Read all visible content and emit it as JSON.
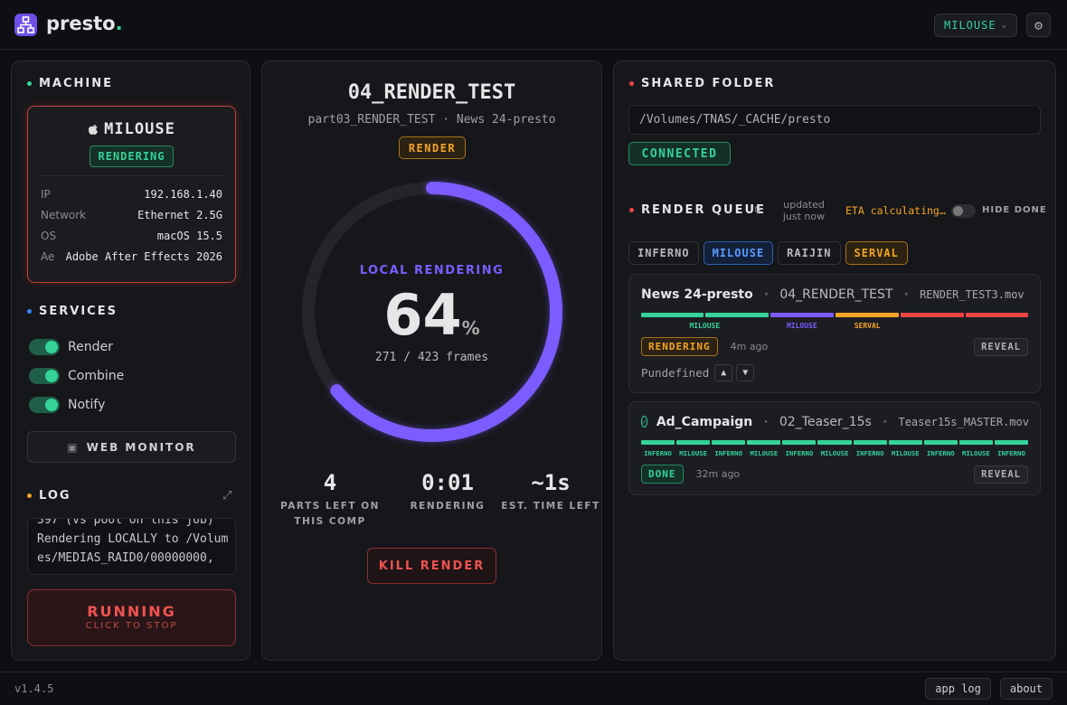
{
  "header": {
    "brand": "presto",
    "brand_dot": ".",
    "machine_select": "MILOUSE"
  },
  "machine": {
    "title": "MACHINE",
    "name": "MILOUSE",
    "status": "RENDERING",
    "info": [
      {
        "key": "IP",
        "value": "192.168.1.40"
      },
      {
        "key": "Network",
        "value": "Ethernet 2.5G"
      },
      {
        "key": "OS",
        "value": "macOS 15.5"
      },
      {
        "key": "Ae",
        "value": "Adobe After Effects 2026"
      }
    ]
  },
  "services": {
    "title": "SERVICES",
    "items": [
      "Render",
      "Combine",
      "Notify"
    ],
    "web_monitor": "WEB MONITOR"
  },
  "log": {
    "title": "LOG",
    "lines": [
      "397 (vs pool on this job)",
      "Rendering LOCALLY to /Volumes/MEDIAS_RAID0/00000000,"
    ]
  },
  "control": {
    "label": "RUNNING",
    "hint": "CLICK TO STOP"
  },
  "render": {
    "title": "04_RENDER_TEST",
    "comp": "part03_RENDER_TEST",
    "separator": "·",
    "project": "News 24-presto",
    "badge": "RENDER",
    "ring_label": "LOCAL RENDERING",
    "percent": 64,
    "percent_unit": "%",
    "frames": "271 / 423 frames",
    "stats": [
      {
        "value": "4",
        "label": "PARTS LEFT ON THIS COMP"
      },
      {
        "value": "0:01",
        "label": "RENDERING"
      },
      {
        "value": "~1s",
        "label": "EST. TIME LEFT"
      }
    ],
    "kill": "KILL RENDER"
  },
  "shared_folder": {
    "title": "SHARED FOLDER",
    "path": "/Volumes/TNAS/_CACHE/presto",
    "status": "CONNECTED"
  },
  "queue": {
    "title": "RENDER QUEUE",
    "updated": [
      "updated",
      "just now"
    ],
    "eta": "ETA calculating…",
    "hide_done": "HIDE DONE",
    "filters": [
      "INFERNO",
      "MILOUSE",
      "RAIJIN",
      "SERVAL"
    ],
    "separator": "·",
    "jobs": [
      {
        "project": "News 24-presto",
        "comp": "04_RENDER_TEST",
        "file": "RENDER_TEST3.mov",
        "groups": [
          {
            "machine": "MILOUSE",
            "count": 2,
            "color": "#34d399"
          },
          {
            "machine": "MILOUSE",
            "count": 1,
            "color": "#7c5cff"
          },
          {
            "machine": "SERVAL",
            "count": 1,
            "color": "#f5a524"
          },
          {
            "machine": null,
            "count": 2,
            "color": "#ef4444"
          }
        ],
        "status": "RENDERING",
        "age": "4m ago",
        "reveal": "REVEAL",
        "owner": "Pundefined"
      },
      {
        "project": "Ad_Campaign",
        "comp": "02_Teaser_15s",
        "file": "Teaser15s_MASTER.mov",
        "groups": [
          {
            "machine": "INFERNO",
            "count": 1,
            "color": "#34d399"
          },
          {
            "machine": "MILOUSE",
            "count": 1,
            "color": "#34d399"
          },
          {
            "machine": "INFERNO",
            "count": 1,
            "color": "#34d399"
          },
          {
            "machine": "MILOUSE",
            "count": 1,
            "color": "#34d399"
          },
          {
            "machine": "INFERNO",
            "count": 1,
            "color": "#34d399"
          },
          {
            "machine": "MILOUSE",
            "count": 1,
            "color": "#34d399"
          },
          {
            "machine": "INFERNO",
            "count": 1,
            "color": "#34d399"
          },
          {
            "machine": "MILOUSE",
            "count": 1,
            "color": "#34d399"
          },
          {
            "machine": "INFERNO",
            "count": 1,
            "color": "#34d399"
          },
          {
            "machine": "MILOUSE",
            "count": 1,
            "color": "#34d399"
          },
          {
            "machine": "INFERNO",
            "count": 1,
            "color": "#34d399"
          }
        ],
        "status": "DONE",
        "age": "32m ago",
        "reveal": "REVEAL"
      }
    ]
  },
  "footer": {
    "version": "v1.4.5",
    "buttons": [
      "app log",
      "about"
    ]
  }
}
